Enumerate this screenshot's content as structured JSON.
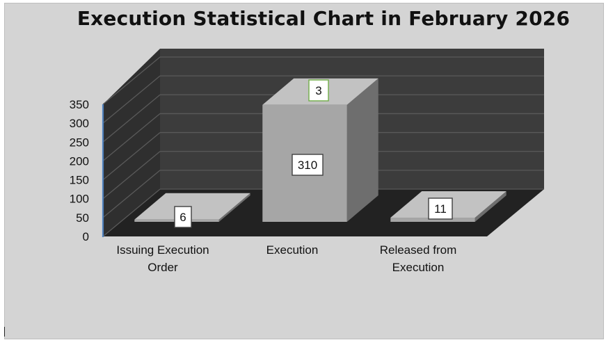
{
  "chart_data": {
    "type": "bar",
    "title": "Execution Statistical Chart in February 2026",
    "xlabel": "",
    "ylabel": "",
    "categories": [
      "Issuing Execution Order",
      "Execution",
      "Released from Execution"
    ],
    "category_lines": [
      [
        "Issuing Execution",
        "Order"
      ],
      [
        "Execution"
      ],
      [
        "Released from",
        "Execution"
      ]
    ],
    "values": [
      6,
      310,
      11
    ],
    "data_labels": [
      "6",
      "310",
      "11"
    ],
    "annotations": [
      {
        "text": "3",
        "category": "Execution"
      }
    ],
    "ylim": [
      0,
      350
    ],
    "yticks": [
      0,
      50,
      100,
      150,
      200,
      250,
      300,
      350
    ],
    "ytick_labels": [
      "0",
      "50",
      "100",
      "150",
      "200",
      "250",
      "300",
      "350"
    ],
    "grid": true,
    "legend": "none",
    "style": "3d-column",
    "colors": {
      "back_wall": "#3c3c3c",
      "side_wall": "#2f2f2f",
      "floor": "#222222",
      "gridline": "#5a5a5a",
      "bar_front": "#a6a6a6",
      "bar_top": "#c2c2c2",
      "bar_side": "#6e6e6e",
      "axis_line": "#4f81bd",
      "annotation_border": "#70ad47"
    }
  }
}
